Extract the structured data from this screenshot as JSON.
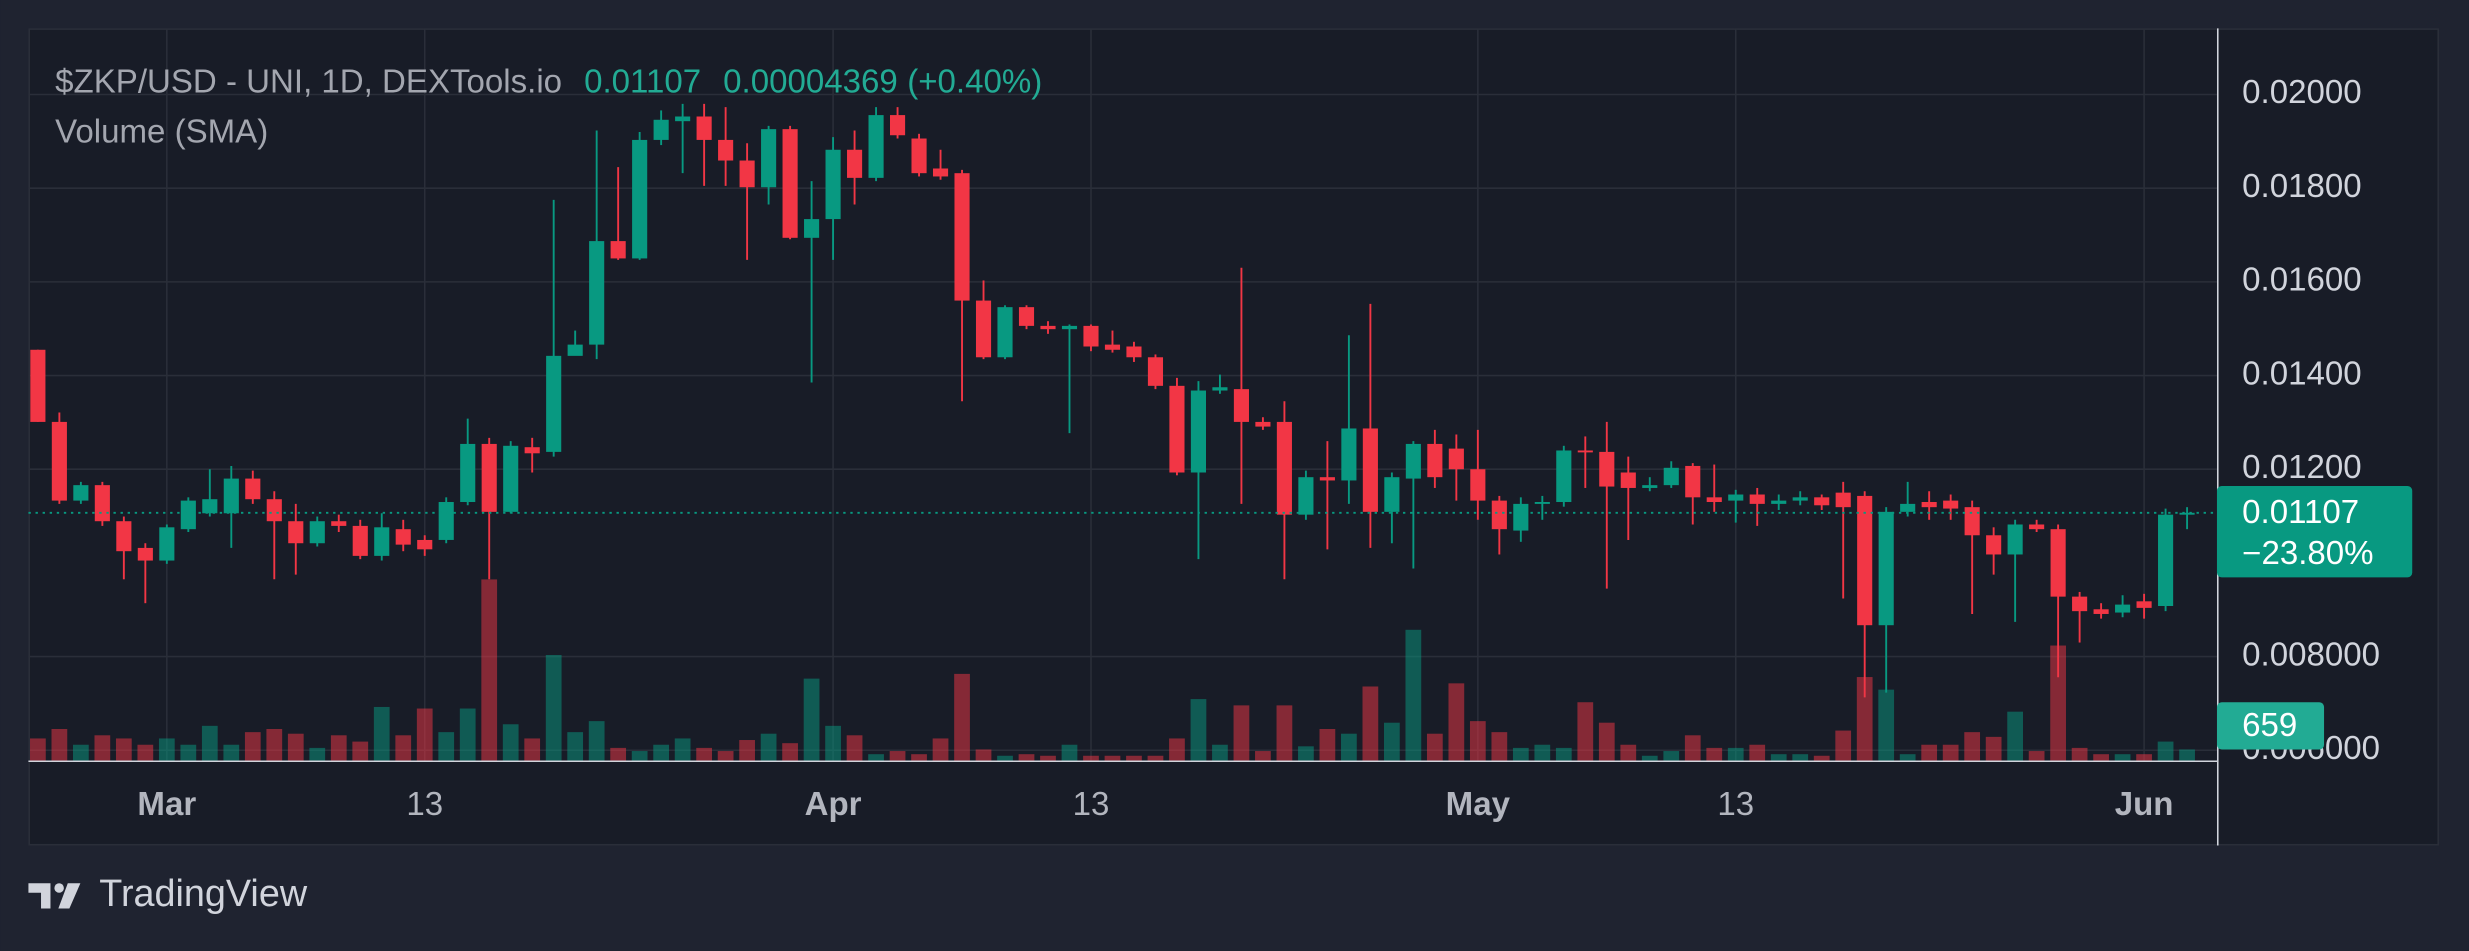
{
  "chart_data": {
    "type": "candlestick",
    "title": "$ZKP/USD - UNI, 1D, DEXTools.io",
    "volume_title": "Volume (SMA)",
    "change": 4.369e-05,
    "change_percent_label": "(+0.40%)",
    "period_change_label": "−23.80%",
    "brand": "TradingView",
    "up_color": "#089981",
    "down_color": "#f23645",
    "grid": true,
    "ylim": [
      0.005782,
      0.021412
    ],
    "yticks": [
      {
        "value": 0.02,
        "label": "0.02000"
      },
      {
        "value": 0.018,
        "label": "0.01800"
      },
      {
        "value": 0.016,
        "label": "0.01600"
      },
      {
        "value": 0.014,
        "label": "0.01400"
      },
      {
        "value": 0.012,
        "label": "0.01200"
      },
      {
        "value": 0.008,
        "label": "0.008000"
      },
      {
        "value": 0.006,
        "label": "0.006000"
      }
    ],
    "categories": [
      null,
      null,
      null,
      null,
      null,
      null,
      "Mar",
      null,
      null,
      null,
      null,
      null,
      null,
      null,
      null,
      null,
      null,
      null,
      "13",
      null,
      null,
      null,
      null,
      null,
      null,
      null,
      null,
      null,
      null,
      null,
      null,
      null,
      null,
      null,
      null,
      null,
      null,
      "Apr",
      null,
      null,
      null,
      null,
      null,
      null,
      null,
      null,
      null,
      null,
      null,
      "13",
      null,
      null,
      null,
      null,
      null,
      null,
      null,
      null,
      null,
      null,
      null,
      null,
      null,
      null,
      null,
      null,
      null,
      "May",
      null,
      null,
      null,
      null,
      null,
      null,
      null,
      null,
      null,
      null,
      null,
      "13",
      null,
      null,
      null,
      null,
      null,
      null,
      null,
      null,
      null,
      null,
      null,
      null,
      null,
      null,
      null,
      null,
      null,
      null,
      "Jun",
      null,
      null
    ],
    "open": [
      0.01455,
      0.01301,
      0.01133,
      0.01166,
      0.01089,
      0.01032,
      0.01005,
      0.01072,
      0.01106,
      0.01106,
      0.0118,
      0.01136,
      0.01089,
      0.01042,
      0.01089,
      0.01079,
      0.01015,
      0.01072,
      0.01049,
      0.01049,
      0.0113,
      0.01254,
      0.01109,
      0.01247,
      0.01237,
      0.01442,
      0.01466,
      0.01687,
      0.0165,
      0.01903,
      0.01943,
      0.01953,
      0.01903,
      0.01859,
      0.01802,
      0.01926,
      0.01694,
      0.01734,
      0.01882,
      0.01822,
      0.01956,
      0.01906,
      0.01842,
      0.01832,
      0.0156,
      0.01439,
      0.01546,
      0.01506,
      0.01499,
      0.01506,
      0.01466,
      0.01462,
      0.01439,
      0.01378,
      0.01193,
      0.01368,
      0.01371,
      0.01301,
      0.01301,
      0.01103,
      0.01183,
      0.01176,
      0.01287,
      0.01109,
      0.0118,
      0.01254,
      0.01244,
      0.012,
      0.01133,
      0.01069,
      0.01126,
      0.0113,
      0.0124,
      0.01237,
      0.01193,
      0.0116,
      0.01166,
      0.01207,
      0.0114,
      0.01133,
      0.01146,
      0.01126,
      0.01133,
      0.0114,
      0.0115,
      0.01143,
      0.00867,
      0.01109,
      0.0113,
      0.01133,
      0.01119,
      0.01059,
      0.01018,
      0.01082,
      0.01072,
      0.00928,
      0.00901,
      0.00894,
      0.00918,
      0.00908,
      0.01103
    ],
    "high": [
      0.01455,
      0.01321,
      0.01173,
      0.01173,
      0.01099,
      0.01042,
      0.01082,
      0.0114,
      0.012,
      0.01207,
      0.01197,
      0.01153,
      0.01126,
      0.01099,
      0.01103,
      0.01092,
      0.01106,
      0.01092,
      0.01059,
      0.0114,
      0.01308,
      0.01267,
      0.0126,
      0.01267,
      0.01775,
      0.01496,
      0.01923,
      0.01845,
      0.0192,
      0.01966,
      0.0198,
      0.0198,
      0.01973,
      0.01896,
      0.01933,
      0.01933,
      0.01815,
      0.01909,
      0.01923,
      0.01973,
      0.01973,
      0.01916,
      0.01882,
      0.01839,
      0.01603,
      0.0155,
      0.0155,
      0.01516,
      0.01509,
      0.01509,
      0.01496,
      0.01472,
      0.01445,
      0.01395,
      0.01388,
      0.01402,
      0.0163,
      0.01311,
      0.01345,
      0.01197,
      0.0126,
      0.01486,
      0.01553,
      0.01193,
      0.0126,
      0.01284,
      0.01274,
      0.01284,
      0.01143,
      0.0114,
      0.01143,
      0.0125,
      0.0127,
      0.01301,
      0.01227,
      0.01183,
      0.01217,
      0.01213,
      0.0121,
      0.01156,
      0.0116,
      0.01146,
      0.01153,
      0.01146,
      0.01173,
      0.01153,
      0.01119,
      0.01173,
      0.01153,
      0.01146,
      0.01133,
      0.01076,
      0.01092,
      0.01092,
      0.01082,
      0.00938,
      0.00914,
      0.00931,
      0.00934,
      0.01116,
      0.01119
    ],
    "low": [
      0.01301,
      0.01126,
      0.01126,
      0.01079,
      0.00965,
      0.00914,
      0.00998,
      0.01066,
      0.01099,
      0.01032,
      0.01126,
      0.00965,
      0.00975,
      0.01035,
      0.01066,
      0.01008,
      0.01005,
      0.01025,
      0.01015,
      0.01042,
      0.01123,
      0.00965,
      0.01106,
      0.01193,
      0.01227,
      0.01449,
      0.01435,
      0.01647,
      0.01647,
      0.01892,
      0.01832,
      0.01805,
      0.01805,
      0.01647,
      0.01765,
      0.01691,
      0.01385,
      0.01647,
      0.01765,
      0.01815,
      0.01906,
      0.01825,
      0.01818,
      0.01345,
      0.01435,
      0.01435,
      0.01499,
      0.01489,
      0.01277,
      0.01452,
      0.01449,
      0.01429,
      0.01371,
      0.01187,
      0.01008,
      0.01361,
      0.01126,
      0.01284,
      0.00965,
      0.01092,
      0.01029,
      0.01126,
      0.01032,
      0.01042,
      0.00988,
      0.0116,
      0.01133,
      0.01092,
      0.01018,
      0.01045,
      0.01092,
      0.0112,
      0.0116,
      0.00945,
      0.01049,
      0.01153,
      0.0116,
      0.01082,
      0.01109,
      0.01086,
      0.01079,
      0.01113,
      0.01123,
      0.01113,
      0.00924,
      0.00713,
      0.00723,
      0.01099,
      0.01092,
      0.01092,
      0.00891,
      0.00975,
      0.00874,
      0.01066,
      0.00756,
      0.0083,
      0.00881,
      0.00884,
      0.00881,
      0.00897,
      0.01072
    ],
    "close": [
      0.01301,
      0.01133,
      0.01166,
      0.01089,
      0.01025,
      0.01005,
      0.01076,
      0.01133,
      0.01136,
      0.0118,
      0.01136,
      0.01089,
      0.01042,
      0.01089,
      0.01079,
      0.01015,
      0.01076,
      0.01039,
      0.01029,
      0.0113,
      0.01254,
      0.01109,
      0.0125,
      0.01234,
      0.01442,
      0.01466,
      0.01687,
      0.0165,
      0.01903,
      0.01946,
      0.01953,
      0.01903,
      0.01859,
      0.01802,
      0.01926,
      0.01694,
      0.01734,
      0.01882,
      0.01822,
      0.01956,
      0.01913,
      0.01832,
      0.01825,
      0.0156,
      0.01439,
      0.01546,
      0.01506,
      0.01499,
      0.01506,
      0.01462,
      0.01455,
      0.01439,
      0.01378,
      0.01193,
      0.01368,
      0.01375,
      0.01301,
      0.01291,
      0.01103,
      0.01183,
      0.01176,
      0.01287,
      0.01109,
      0.01183,
      0.01254,
      0.01183,
      0.012,
      0.01133,
      0.01072,
      0.01126,
      0.0113,
      0.0124,
      0.01237,
      0.01163,
      0.0116,
      0.01166,
      0.01203,
      0.0114,
      0.0113,
      0.01146,
      0.01126,
      0.01133,
      0.0114,
      0.01123,
      0.01119,
      0.00867,
      0.01109,
      0.01126,
      0.01119,
      0.01116,
      0.01059,
      0.01018,
      0.01082,
      0.01072,
      0.00928,
      0.00897,
      0.00891,
      0.00911,
      0.00904,
      0.01103,
      0.01107
    ],
    "volume": [
      1316,
      1880,
      940,
      1504,
      1316,
      940,
      1316,
      940,
      2068,
      940,
      1692,
      1880,
      1598,
      752,
      1504,
      1128,
      3196,
      1504,
      3102,
      1692,
      3102,
      10810,
      2162,
      1316,
      6298,
      1692,
      2350,
      752,
      564,
      940,
      1316,
      752,
      564,
      1222,
      1598,
      1034,
      4888,
      2068,
      1504,
      376,
      564,
      376,
      1316,
      5170,
      658,
      282,
      376,
      282,
      940,
      282,
      282,
      282,
      282,
      1316,
      3666,
      940,
      3290,
      564,
      3290,
      846,
      1880,
      1598,
      4418,
      2256,
      7802,
      1598,
      4606,
      2350,
      1692,
      752,
      940,
      752,
      3478,
      2256,
      940,
      282,
      564,
      1504,
      752,
      752,
      940,
      376,
      376,
      282,
      1786,
      4982,
      4230,
      376,
      940,
      940,
      1692,
      1410,
      2914,
      564,
      6862,
      752,
      376,
      376,
      376,
      1128,
      659
    ]
  }
}
